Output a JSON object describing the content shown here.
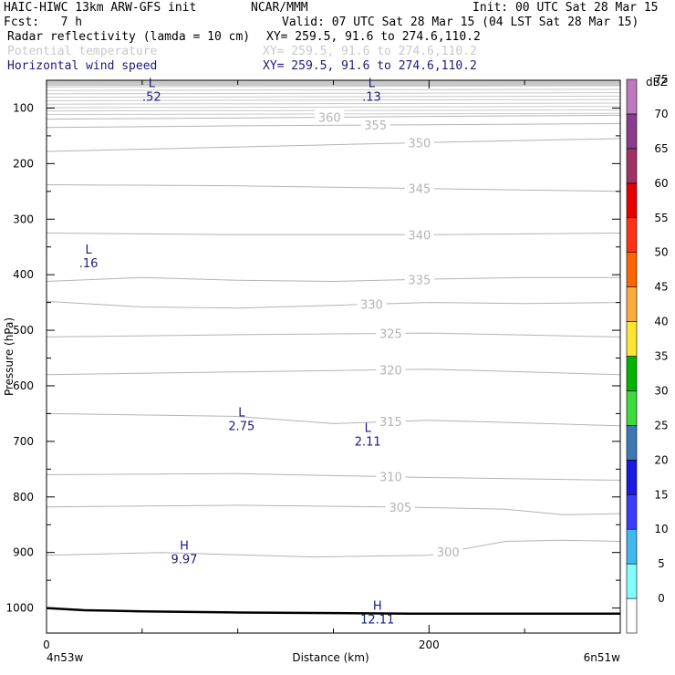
{
  "header": {
    "model": "HAIC-HIWC 13km ARW-GFS init",
    "center": "NCAR/MMM",
    "init": "Init: 00 UTC Sat 28 Mar 15",
    "fcst": "Fcst:   7 h",
    "valid": "Valid: 07 UTC Sat 28 Mar 15 (04 LST Sat 28 Mar 15)",
    "fields": [
      {
        "name": "Radar reflectivity (lamda = 10 cm)",
        "xy": "XY= 259.5, 91.6 to 274.6,110.2",
        "color": "#000000"
      },
      {
        "name": "Potential temperature",
        "xy": "XY= 259.5, 91.6 to 274.6,110.2",
        "color": "#c8c8c8"
      },
      {
        "name": "Horizontal wind speed",
        "xy": "XY= 259.5, 91.6 to 274.6,110.2",
        "color": "#1a1a80"
      }
    ]
  },
  "chart_data": {
    "type": "cross-section",
    "xlabel": "Distance (km)",
    "ylabel": "Pressure (hPa)",
    "xlim": [
      0,
      300
    ],
    "ylim": [
      1045,
      50
    ],
    "x_ticks": [
      0,
      200
    ],
    "y_ticks": [
      100,
      200,
      300,
      400,
      500,
      600,
      700,
      800,
      900,
      1000
    ],
    "x_endpoints": {
      "left": "4n53w",
      "right": "6n51w"
    },
    "theta_contours": [
      {
        "label": "300",
        "x": [
          0,
          60,
          140,
          200,
          240,
          270,
          300
        ],
        "p": [
          905,
          900,
          908,
          905,
          880,
          878,
          880
        ]
      },
      {
        "label": "305",
        "x": [
          0,
          100,
          180,
          240,
          270,
          300
        ],
        "p": [
          818,
          815,
          818,
          822,
          832,
          830
        ]
      },
      {
        "label": "310",
        "x": [
          0,
          100,
          200,
          300
        ],
        "p": [
          760,
          758,
          765,
          770
        ]
      },
      {
        "label": "315",
        "x": [
          0,
          100,
          150,
          200,
          300
        ],
        "p": [
          650,
          655,
          668,
          662,
          672
        ]
      },
      {
        "label": "320",
        "x": [
          0,
          100,
          200,
          300
        ],
        "p": [
          580,
          575,
          570,
          580
        ]
      },
      {
        "label": "325",
        "x": [
          0,
          100,
          200,
          300
        ],
        "p": [
          512,
          508,
          505,
          512
        ]
      },
      {
        "label": "330",
        "x": [
          0,
          50,
          100,
          150,
          200,
          250,
          300
        ],
        "p": [
          448,
          458,
          460,
          455,
          450,
          452,
          450
        ]
      },
      {
        "label": "335",
        "x": [
          0,
          50,
          100,
          150,
          200,
          250,
          300
        ],
        "p": [
          412,
          405,
          410,
          412,
          408,
          405,
          405
        ]
      },
      {
        "label": "340",
        "x": [
          0,
          100,
          200,
          300
        ],
        "p": [
          325,
          328,
          328,
          325
        ]
      },
      {
        "label": "345",
        "x": [
          0,
          100,
          200,
          300
        ],
        "p": [
          238,
          240,
          245,
          250
        ]
      },
      {
        "label": "350",
        "x": [
          0,
          100,
          200,
          300
        ],
        "p": [
          178,
          170,
          162,
          155
        ]
      },
      {
        "label": "355",
        "x": [
          0,
          100,
          200,
          300
        ],
        "p": [
          135,
          132,
          130,
          128
        ]
      },
      {
        "label": "360",
        "x": [
          0,
          100,
          200,
          300
        ],
        "p": [
          120,
          118,
          115,
          113
        ]
      }
    ],
    "wind_extrema": [
      {
        "type": "L",
        "value": ".52",
        "x": 55,
        "p": 62
      },
      {
        "type": "L",
        "value": ".13",
        "x": 170,
        "p": 62
      },
      {
        "type": "L",
        "value": ".16",
        "x": 22,
        "p": 362
      },
      {
        "type": "L",
        "value": "2.75",
        "x": 102,
        "p": 655
      },
      {
        "type": "L",
        "value": "2.11",
        "x": 168,
        "p": 683
      },
      {
        "type": "H",
        "value": "9.97",
        "x": 72,
        "p": 895
      },
      {
        "type": "H",
        "value": "12.11",
        "x": 173,
        "p": 1003
      }
    ],
    "terrain": {
      "x": [
        0,
        20,
        50,
        100,
        150,
        190,
        250,
        300
      ],
      "p": [
        1000,
        1004,
        1006,
        1008,
        1009,
        1010,
        1010,
        1010
      ]
    },
    "colorbar": {
      "unit": "dBZ",
      "levels": [
        0,
        5,
        10,
        15,
        20,
        25,
        30,
        35,
        40,
        45,
        50,
        55,
        60,
        65,
        70,
        75
      ],
      "colors": [
        "#ffffff",
        "#7fffff",
        "#40b8f0",
        "#3c3cff",
        "#1a1ae0",
        "#3c78b4",
        "#3cdc3c",
        "#00b400",
        "#ffe632",
        "#ffaa3c",
        "#ff6400",
        "#ff3214",
        "#e60000",
        "#a03264",
        "#8c3c8c",
        "#be78be"
      ]
    }
  }
}
